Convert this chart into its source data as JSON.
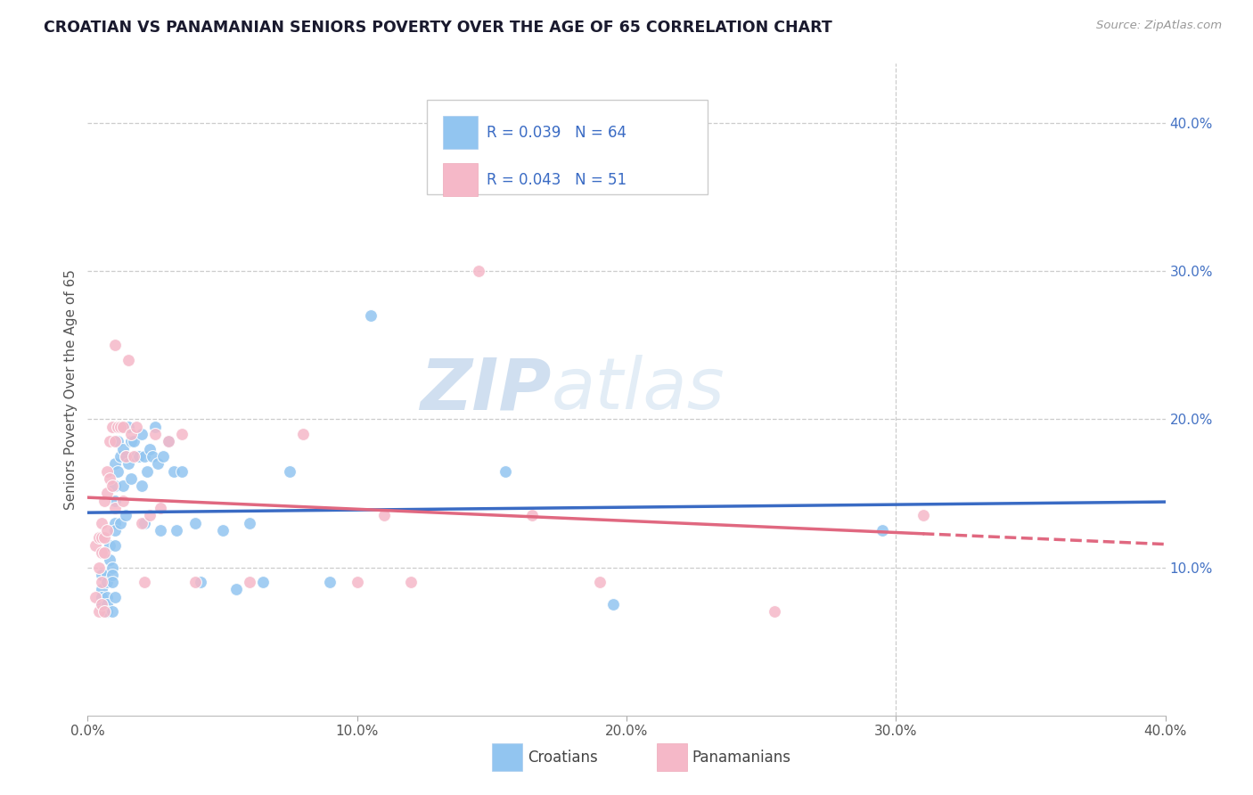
{
  "title": "CROATIAN VS PANAMANIAN SENIORS POVERTY OVER THE AGE OF 65 CORRELATION CHART",
  "source": "Source: ZipAtlas.com",
  "ylabel": "Seniors Poverty Over the Age of 65",
  "xlim": [
    0.0,
    0.4
  ],
  "ylim": [
    0.0,
    0.44
  ],
  "xticks": [
    0.0,
    0.1,
    0.2,
    0.3,
    0.4
  ],
  "yticks_right": [
    0.1,
    0.2,
    0.3,
    0.4
  ],
  "xticklabels": [
    "0.0%",
    "10.0%",
    "20.0%",
    "30.0%",
    "40.0%"
  ],
  "yticklabels_right": [
    "10.0%",
    "20.0%",
    "30.0%",
    "40.0%"
  ],
  "croatian_color": "#92c5f0",
  "panamanian_color": "#f5b8c8",
  "line_blue": "#3a6bc4",
  "line_pink": "#e06880",
  "croatian_R": 0.039,
  "croatian_N": 64,
  "panamanian_R": 0.043,
  "panamanian_N": 51,
  "watermark_zip": "ZIP",
  "watermark_atlas": "atlas",
  "legend_labels": [
    "Croatians",
    "Panamanians"
  ],
  "croatian_x": [
    0.005,
    0.005,
    0.005,
    0.005,
    0.007,
    0.007,
    0.007,
    0.007,
    0.007,
    0.008,
    0.008,
    0.009,
    0.009,
    0.009,
    0.009,
    0.01,
    0.01,
    0.01,
    0.01,
    0.01,
    0.01,
    0.01,
    0.011,
    0.011,
    0.012,
    0.012,
    0.013,
    0.013,
    0.014,
    0.014,
    0.015,
    0.015,
    0.016,
    0.016,
    0.017,
    0.018,
    0.019,
    0.02,
    0.02,
    0.021,
    0.021,
    0.022,
    0.023,
    0.024,
    0.025,
    0.026,
    0.027,
    0.028,
    0.03,
    0.032,
    0.033,
    0.035,
    0.04,
    0.042,
    0.05,
    0.055,
    0.06,
    0.065,
    0.075,
    0.09,
    0.105,
    0.155,
    0.195,
    0.295
  ],
  "croatian_y": [
    0.095,
    0.085,
    0.08,
    0.075,
    0.095,
    0.09,
    0.08,
    0.075,
    0.07,
    0.115,
    0.105,
    0.1,
    0.095,
    0.09,
    0.07,
    0.17,
    0.155,
    0.145,
    0.13,
    0.125,
    0.115,
    0.08,
    0.185,
    0.165,
    0.175,
    0.13,
    0.18,
    0.155,
    0.175,
    0.135,
    0.195,
    0.17,
    0.185,
    0.16,
    0.185,
    0.175,
    0.175,
    0.19,
    0.155,
    0.175,
    0.13,
    0.165,
    0.18,
    0.175,
    0.195,
    0.17,
    0.125,
    0.175,
    0.185,
    0.165,
    0.125,
    0.165,
    0.13,
    0.09,
    0.125,
    0.085,
    0.13,
    0.09,
    0.165,
    0.09,
    0.27,
    0.165,
    0.075,
    0.125
  ],
  "panamanian_x": [
    0.003,
    0.003,
    0.004,
    0.004,
    0.004,
    0.005,
    0.005,
    0.005,
    0.005,
    0.005,
    0.006,
    0.006,
    0.006,
    0.006,
    0.007,
    0.007,
    0.007,
    0.008,
    0.008,
    0.009,
    0.009,
    0.01,
    0.01,
    0.01,
    0.011,
    0.012,
    0.013,
    0.013,
    0.014,
    0.015,
    0.016,
    0.017,
    0.018,
    0.02,
    0.021,
    0.023,
    0.025,
    0.027,
    0.03,
    0.035,
    0.04,
    0.06,
    0.08,
    0.1,
    0.11,
    0.12,
    0.145,
    0.165,
    0.19,
    0.255,
    0.31
  ],
  "panamanian_y": [
    0.115,
    0.08,
    0.12,
    0.1,
    0.07,
    0.13,
    0.12,
    0.11,
    0.09,
    0.075,
    0.145,
    0.12,
    0.11,
    0.07,
    0.165,
    0.15,
    0.125,
    0.185,
    0.16,
    0.195,
    0.155,
    0.25,
    0.185,
    0.14,
    0.195,
    0.195,
    0.195,
    0.145,
    0.175,
    0.24,
    0.19,
    0.175,
    0.195,
    0.13,
    0.09,
    0.135,
    0.19,
    0.14,
    0.185,
    0.19,
    0.09,
    0.09,
    0.19,
    0.09,
    0.135,
    0.09,
    0.3,
    0.135,
    0.09,
    0.07,
    0.135
  ]
}
